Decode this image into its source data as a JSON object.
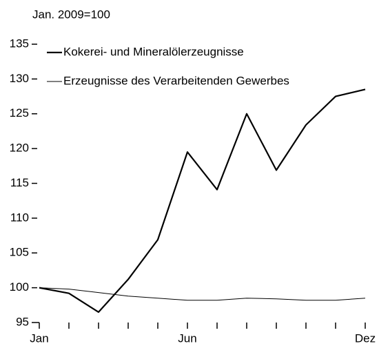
{
  "chart_data": {
    "type": "line",
    "subtitle": "Jan. 2009=100",
    "categories": [
      "Jan",
      null,
      null,
      null,
      null,
      "Jun",
      null,
      null,
      null,
      null,
      null,
      "Dez"
    ],
    "series": [
      {
        "name": "Kokerei- und Mineralölerzeugnisse",
        "color": "#000000",
        "width": 2.2,
        "values": [
          100,
          99.2,
          96.5,
          101.2,
          106.9,
          119.5,
          114.1,
          125.0,
          116.9,
          123.4,
          127.5,
          128.5
        ]
      },
      {
        "name": "Erzeugnisse des Verarbeitenden Gewerbes",
        "color": "#000000",
        "width": 1,
        "values": [
          100,
          99.8,
          99.3,
          98.8,
          98.5,
          98.2,
          98.2,
          98.5,
          98.4,
          98.2,
          98.2,
          98.5
        ]
      }
    ],
    "ylim": [
      95,
      135
    ],
    "yticks": [
      95,
      100,
      105,
      110,
      115,
      120,
      125,
      130,
      135
    ],
    "legend": "top-left",
    "grid": false
  }
}
